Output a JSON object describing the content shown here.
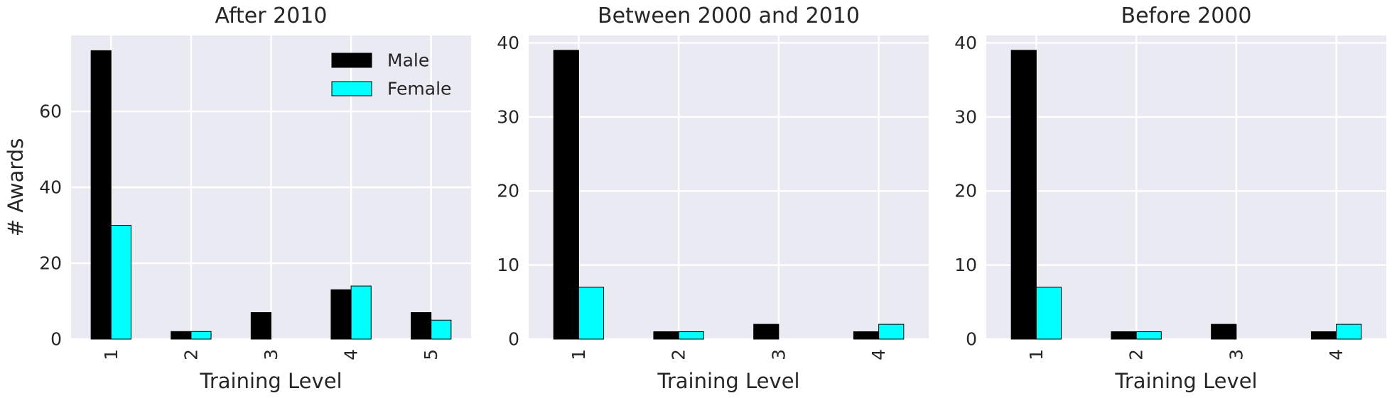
{
  "chart_data": [
    {
      "type": "bar",
      "title": "After 2010",
      "xlabel": "Training Level",
      "ylabel": "# Awards",
      "categories": [
        "1",
        "2",
        "3",
        "4",
        "5"
      ],
      "series": [
        {
          "name": "Male",
          "values": [
            76,
            2,
            7,
            13,
            7
          ]
        },
        {
          "name": "Female",
          "values": [
            30,
            2,
            0,
            14,
            5
          ]
        }
      ],
      "ylim": [
        0,
        80
      ],
      "yticks": [
        0,
        20,
        40,
        60
      ],
      "grid": true,
      "legend": "top-right"
    },
    {
      "type": "bar",
      "title": "Between 2000 and 2010",
      "xlabel": "Training Level",
      "ylabel": "",
      "categories": [
        "1",
        "2",
        "3",
        "4"
      ],
      "series": [
        {
          "name": "Male",
          "values": [
            39,
            1,
            2,
            1
          ]
        },
        {
          "name": "Female",
          "values": [
            7,
            1,
            0,
            2
          ]
        }
      ],
      "ylim": [
        0,
        41
      ],
      "yticks": [
        0,
        10,
        20,
        30,
        40
      ],
      "grid": true
    },
    {
      "type": "bar",
      "title": "Before 2000",
      "xlabel": "Training Level",
      "ylabel": "",
      "categories": [
        "1",
        "2",
        "3",
        "4"
      ],
      "series": [
        {
          "name": "Male",
          "values": [
            39,
            1,
            2,
            1
          ]
        },
        {
          "name": "Female",
          "values": [
            7,
            1,
            0,
            2
          ]
        }
      ],
      "ylim": [
        0,
        41
      ],
      "yticks": [
        0,
        10,
        20,
        30,
        40
      ],
      "grid": true
    }
  ],
  "colors": {
    "male": "#000000",
    "female": "#00ffff",
    "plot_bg": "#eaeaf2",
    "grid": "#ffffff"
  }
}
